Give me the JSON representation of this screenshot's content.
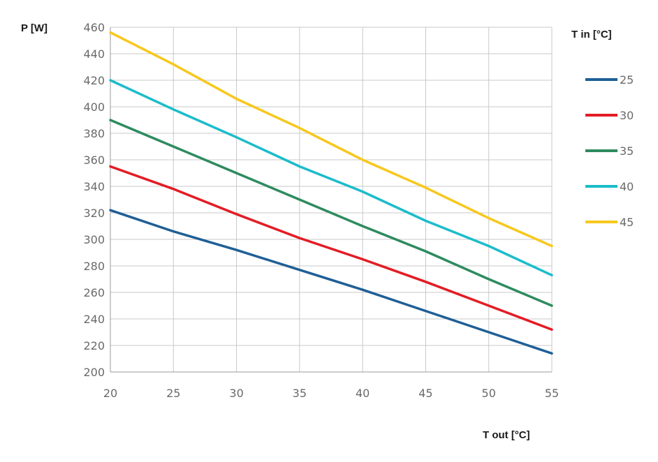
{
  "chart_data": {
    "type": "line",
    "ylabel": "P [W]",
    "xlabel": "T out [°C]",
    "legend_title": "T in [°C]",
    "legend_position": "right",
    "grid": true,
    "xlim": [
      20,
      55
    ],
    "ylim": [
      200,
      460
    ],
    "x_ticks": [
      "20",
      "25",
      "30",
      "35",
      "40",
      "45",
      "50",
      "55"
    ],
    "y_ticks": [
      "200",
      "220",
      "240",
      "260",
      "280",
      "300",
      "320",
      "340",
      "360",
      "380",
      "400",
      "420",
      "440",
      "460"
    ],
    "x": [
      20,
      25,
      30,
      35,
      40,
      45,
      50,
      55
    ],
    "series": [
      {
        "name": "25",
        "color": "#1f5f96",
        "values": [
          322,
          306,
          292,
          277,
          262,
          246,
          230,
          214
        ]
      },
      {
        "name": "30",
        "color": "#e31c24",
        "values": [
          355,
          338,
          319,
          301,
          285,
          268,
          250,
          232
        ]
      },
      {
        "name": "35",
        "color": "#2e8b5f",
        "values": [
          390,
          370,
          350,
          330,
          310,
          291,
          270,
          250
        ]
      },
      {
        "name": "40",
        "color": "#1cbccb",
        "values": [
          420,
          398,
          377,
          355,
          336,
          314,
          295,
          273
        ]
      },
      {
        "name": "45",
        "color": "#f7c81e",
        "values": [
          456,
          432,
          406,
          384,
          360,
          339,
          316,
          295
        ]
      }
    ]
  }
}
